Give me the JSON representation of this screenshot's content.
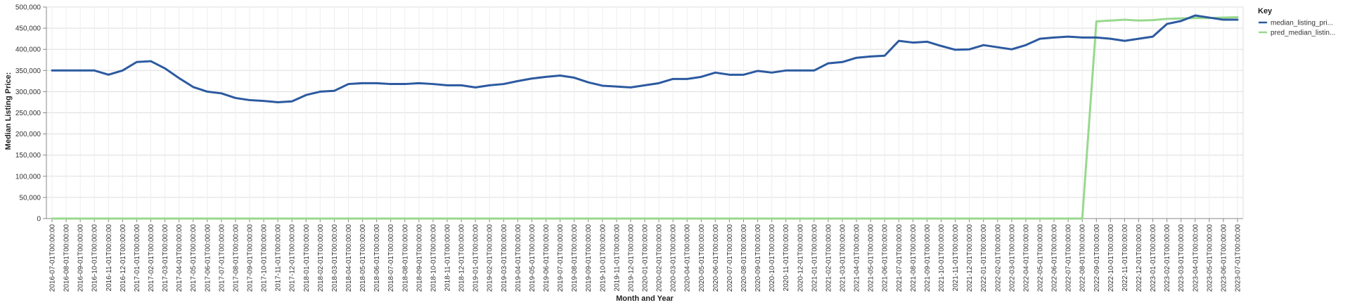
{
  "chart_data": {
    "type": "line",
    "xlabel": "Month and Year",
    "ylabel": "Median Listing Price:",
    "ylim": [
      0,
      500000
    ],
    "y_ticks": [
      "0",
      "50,000",
      "100,000",
      "150,000",
      "200,000",
      "250,000",
      "300,000",
      "350,000",
      "400,000",
      "450,000",
      "500,000"
    ],
    "grid": true,
    "legend": {
      "title": "Key",
      "position": "top-right"
    },
    "x": [
      "2016-07-01T00:00:00",
      "2016-08-01T00:00:00",
      "2016-09-01T00:00:00",
      "2016-10-01T00:00:00",
      "2016-11-01T00:00:00",
      "2016-12-01T00:00:00",
      "2017-01-01T00:00:00",
      "2017-02-01T00:00:00",
      "2017-03-01T00:00:00",
      "2017-04-01T00:00:00",
      "2017-05-01T00:00:00",
      "2017-06-01T00:00:00",
      "2017-07-01T00:00:00",
      "2017-08-01T00:00:00",
      "2017-09-01T00:00:00",
      "2017-10-01T00:00:00",
      "2017-11-01T00:00:00",
      "2017-12-01T00:00:00",
      "2018-01-01T00:00:00",
      "2018-02-01T00:00:00",
      "2018-03-01T00:00:00",
      "2018-04-01T00:00:00",
      "2018-05-01T00:00:00",
      "2018-06-01T00:00:00",
      "2018-07-01T00:00:00",
      "2018-08-01T00:00:00",
      "2018-09-01T00:00:00",
      "2018-10-01T00:00:00",
      "2018-11-01T00:00:00",
      "2018-12-01T00:00:00",
      "2019-01-01T00:00:00",
      "2019-02-01T00:00:00",
      "2019-03-01T00:00:00",
      "2019-04-01T00:00:00",
      "2019-05-01T00:00:00",
      "2019-06-01T00:00:00",
      "2019-07-01T00:00:00",
      "2019-08-01T00:00:00",
      "2019-09-01T00:00:00",
      "2019-10-01T00:00:00",
      "2019-11-01T00:00:00",
      "2019-12-01T00:00:00",
      "2020-01-01T00:00:00",
      "2020-02-01T00:00:00",
      "2020-03-01T00:00:00",
      "2020-04-01T00:00:00",
      "2020-05-01T00:00:00",
      "2020-06-01T00:00:00",
      "2020-07-01T00:00:00",
      "2020-08-01T00:00:00",
      "2020-09-01T00:00:00",
      "2020-10-01T00:00:00",
      "2020-11-01T00:00:00",
      "2020-12-01T00:00:00",
      "2021-01-01T00:00:00",
      "2021-02-01T00:00:00",
      "2021-03-01T00:00:00",
      "2021-04-01T00:00:00",
      "2021-05-01T00:00:00",
      "2021-06-01T00:00:00",
      "2021-07-01T00:00:00",
      "2021-08-01T00:00:00",
      "2021-09-01T00:00:00",
      "2021-10-01T00:00:00",
      "2021-11-01T00:00:00",
      "2021-12-01T00:00:00",
      "2022-01-01T00:00:00",
      "2022-02-01T00:00:00",
      "2022-03-01T00:00:00",
      "2022-04-01T00:00:00",
      "2022-05-01T00:00:00",
      "2022-06-01T00:00:00",
      "2022-07-01T00:00:00",
      "2022-08-01T00:00:00",
      "2022-09-01T00:00:00",
      "2022-10-01T00:00:00",
      "2022-11-01T00:00:00",
      "2022-12-01T00:00:00",
      "2023-01-01T00:00:00",
      "2023-02-01T00:00:00",
      "2023-03-01T00:00:00",
      "2023-04-01T00:00:00",
      "2023-05-01T00:00:00",
      "2023-06-01T00:00:00",
      "2023-07-01T00:00:00"
    ],
    "series": [
      {
        "name": "median_listing_pri...",
        "color": "#2c5aa0",
        "values": [
          350000,
          350000,
          350000,
          350000,
          340000,
          350000,
          370000,
          372000,
          355000,
          332000,
          311000,
          300000,
          296000,
          285000,
          280000,
          278000,
          275000,
          277000,
          292000,
          300000,
          302000,
          318000,
          320000,
          320000,
          318000,
          318000,
          320000,
          318000,
          315000,
          315000,
          310000,
          315000,
          318000,
          325000,
          331000,
          335000,
          338000,
          333000,
          322000,
          314000,
          312000,
          310000,
          315000,
          320000,
          330000,
          330000,
          335000,
          345000,
          340000,
          340000,
          349000,
          345000,
          350000,
          350000,
          350000,
          367000,
          370000,
          380000,
          383000,
          385000,
          420000,
          416000,
          418000,
          408000,
          399000,
          400000,
          410000,
          405000,
          400000,
          410000,
          425000,
          428000,
          430000,
          428000,
          428000,
          425000,
          420000,
          425000,
          430000,
          460000,
          467000,
          480000,
          475000,
          470000,
          470000
        ]
      },
      {
        "name": "pred_median_listin...",
        "color": "#98d98e",
        "values": [
          0,
          0,
          0,
          0,
          0,
          0,
          0,
          0,
          0,
          0,
          0,
          0,
          0,
          0,
          0,
          0,
          0,
          0,
          0,
          0,
          0,
          0,
          0,
          0,
          0,
          0,
          0,
          0,
          0,
          0,
          0,
          0,
          0,
          0,
          0,
          0,
          0,
          0,
          0,
          0,
          0,
          0,
          0,
          0,
          0,
          0,
          0,
          0,
          0,
          0,
          0,
          0,
          0,
          0,
          0,
          0,
          0,
          0,
          0,
          0,
          0,
          0,
          0,
          0,
          0,
          0,
          0,
          0,
          0,
          0,
          0,
          0,
          0,
          0,
          466000,
          468000,
          470000,
          468000,
          469000,
          472000,
          473000,
          474000,
          474000,
          475000,
          476000
        ]
      }
    ]
  }
}
